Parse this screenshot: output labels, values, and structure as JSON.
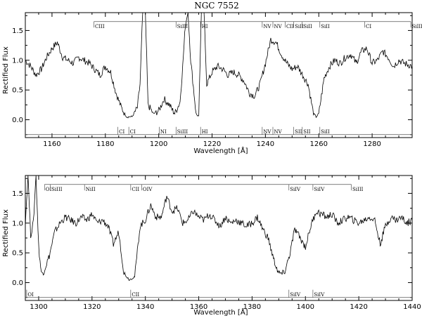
{
  "chart_data": [
    {
      "type": "line",
      "title": "NGC 7552",
      "xlabel": "Wavelength [Å]",
      "ylabel": "Rectified Flux",
      "xlim": [
        1150,
        1295
      ],
      "ylim": [
        -0.3,
        1.8
      ],
      "xticks": [
        1160,
        1180,
        1200,
        1220,
        1240,
        1260,
        1280
      ],
      "yticks": [
        0.0,
        0.5,
        1.0,
        1.5
      ],
      "xtick_labels": [
        "1160",
        "1180",
        "1200",
        "1220",
        "1240",
        "1260",
        "1280"
      ],
      "ytick_labels": [
        "0.0",
        "0.5",
        "1.0",
        "1.5"
      ],
      "x": [
        1150,
        1152,
        1154,
        1156,
        1158,
        1160,
        1162,
        1164,
        1166,
        1168,
        1170,
        1172,
        1174,
        1176,
        1178,
        1180,
        1182,
        1184,
        1186,
        1188,
        1190,
        1192,
        1193,
        1194,
        1195,
        1196,
        1198,
        1200,
        1202,
        1204,
        1206,
        1208,
        1209,
        1210,
        1211,
        1212,
        1214,
        1215,
        1216,
        1217,
        1218,
        1220,
        1222,
        1224,
        1226,
        1228,
        1230,
        1232,
        1234,
        1236,
        1238,
        1240,
        1242,
        1244,
        1246,
        1248,
        1250,
        1252,
        1254,
        1256,
        1258,
        1259,
        1260,
        1261,
        1262,
        1264,
        1266,
        1268,
        1270,
        1272,
        1274,
        1276,
        1278,
        1280,
        1282,
        1284,
        1286,
        1288,
        1290,
        1292,
        1295
      ],
      "y": [
        1.0,
        0.9,
        0.75,
        0.85,
        1.05,
        1.2,
        1.3,
        1.05,
        1.0,
        0.95,
        1.05,
        1.0,
        0.95,
        0.85,
        0.75,
        0.9,
        0.8,
        0.45,
        0.2,
        0.05,
        0.05,
        0.2,
        0.6,
        1.8,
        1.8,
        0.25,
        0.1,
        0.15,
        0.35,
        0.25,
        0.1,
        0.3,
        0.9,
        1.6,
        1.8,
        1.0,
        0.1,
        0.05,
        1.8,
        1.8,
        0.6,
        0.8,
        0.9,
        0.85,
        0.75,
        0.8,
        0.75,
        0.65,
        0.45,
        0.4,
        0.6,
        0.95,
        1.35,
        1.3,
        1.1,
        0.95,
        0.85,
        0.9,
        0.75,
        0.6,
        0.1,
        0.05,
        0.1,
        0.4,
        0.7,
        0.9,
        1.0,
        0.95,
        1.05,
        1.1,
        0.95,
        1.15,
        1.2,
        0.95,
        1.0,
        1.15,
        1.05,
        0.9,
        1.0,
        0.95,
        0.9
      ],
      "top_lines": [
        {
          "label": "CIII",
          "x": 1175.7
        },
        {
          "label": "SiIII",
          "x": 1206.5
        },
        {
          "label": "HI",
          "x": 1215.7
        },
        {
          "label": "NV",
          "x": 1238.8
        },
        {
          "label": "NV",
          "x": 1242.8
        },
        {
          "label": "CII",
          "x": 1247.4
        },
        {
          "label": "SiII",
          "x": 1250.6
        },
        {
          "label": "SiII",
          "x": 1253.8
        },
        {
          "label": "SiII",
          "x": 1260.4
        },
        {
          "label": "CI",
          "x": 1277.2
        },
        {
          "label": "SiIII",
          "x": 1294.5
        }
      ],
      "bottom_lines": [
        {
          "label": "CI",
          "x": 1184.7
        },
        {
          "label": "CI",
          "x": 1188.8
        },
        {
          "label": "NI",
          "x": 1200.2
        },
        {
          "label": "SiIII",
          "x": 1206.5
        },
        {
          "label": "HI",
          "x": 1215.7
        },
        {
          "label": "NV",
          "x": 1238.8
        },
        {
          "label": "NV",
          "x": 1242.8
        },
        {
          "label": "SII",
          "x": 1250.6
        },
        {
          "label": "SII",
          "x": 1253.8
        },
        {
          "label": "SiII",
          "x": 1260.4
        }
      ]
    },
    {
      "type": "line",
      "title": "",
      "xlabel": "Wavelength [Å]",
      "ylabel": "Rectified Flux",
      "xlim": [
        1295,
        1440
      ],
      "ylim": [
        -0.3,
        1.8
      ],
      "xticks": [
        1300,
        1320,
        1340,
        1360,
        1380,
        1400,
        1420,
        1440
      ],
      "yticks": [
        0.0,
        0.5,
        1.0,
        1.5
      ],
      "xtick_labels": [
        "1300",
        "1320",
        "1340",
        "1360",
        "1380",
        "1400",
        "1420",
        "1440"
      ],
      "ytick_labels": [
        "0.0",
        "0.5",
        "1.0",
        "1.5"
      ],
      "x": [
        1295,
        1296,
        1297,
        1298,
        1299,
        1300,
        1301,
        1302,
        1304,
        1306,
        1308,
        1310,
        1312,
        1314,
        1316,
        1318,
        1320,
        1322,
        1324,
        1326,
        1328,
        1330,
        1332,
        1334,
        1336,
        1338,
        1340,
        1342,
        1344,
        1346,
        1348,
        1350,
        1352,
        1354,
        1356,
        1358,
        1360,
        1362,
        1364,
        1366,
        1368,
        1370,
        1372,
        1374,
        1376,
        1378,
        1380,
        1382,
        1384,
        1386,
        1388,
        1390,
        1392,
        1394,
        1396,
        1398,
        1400,
        1402,
        1404,
        1406,
        1408,
        1410,
        1412,
        1414,
        1416,
        1418,
        1420,
        1422,
        1424,
        1426,
        1428,
        1430,
        1432,
        1434,
        1436,
        1438,
        1440
      ],
      "y": [
        1.0,
        1.8,
        0.8,
        1.0,
        1.8,
        0.6,
        0.15,
        0.2,
        0.45,
        0.85,
        1.0,
        1.1,
        1.05,
        1.0,
        1.1,
        1.05,
        1.15,
        1.0,
        1.05,
        0.95,
        0.65,
        0.85,
        0.15,
        0.05,
        0.1,
        0.95,
        1.05,
        1.3,
        1.1,
        1.1,
        1.45,
        1.2,
        1.25,
        1.0,
        1.05,
        1.2,
        1.1,
        1.05,
        1.15,
        1.05,
        0.95,
        1.1,
        1.0,
        1.05,
        1.0,
        0.95,
        1.0,
        1.1,
        0.9,
        0.75,
        0.4,
        0.15,
        0.15,
        0.45,
        0.9,
        0.75,
        0.6,
        0.95,
        1.2,
        1.15,
        1.1,
        1.15,
        1.0,
        1.05,
        1.1,
        1.05,
        1.0,
        1.05,
        1.1,
        1.05,
        0.65,
        0.95,
        1.1,
        1.05,
        1.1,
        1.0,
        1.05
      ],
      "top_lines": [
        {
          "label": "OI",
          "x": 1302.2
        },
        {
          "label": "SiIII",
          "x": 1304.4
        },
        {
          "label": "NiII",
          "x": 1317.2
        },
        {
          "label": "CII",
          "x": 1334.5
        },
        {
          "label": "OIV",
          "x": 1338.6
        },
        {
          "label": "SiIV",
          "x": 1393.8
        },
        {
          "label": "SiIV",
          "x": 1402.8
        },
        {
          "label": "SiIII",
          "x": 1417.2
        }
      ],
      "bottom_lines": [
        {
          "label": "OI",
          "x": 1295.5
        },
        {
          "label": "CII",
          "x": 1334.5
        },
        {
          "label": "SiIV",
          "x": 1393.8
        },
        {
          "label": "SiIV",
          "x": 1402.8
        }
      ]
    }
  ]
}
